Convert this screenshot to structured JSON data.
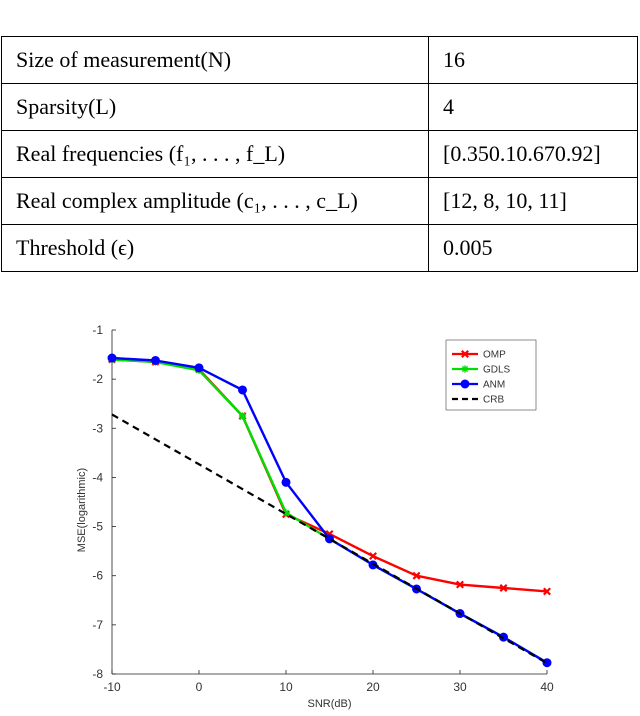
{
  "table": {
    "rows": [
      {
        "label": "Size of measurement(N)",
        "value": "16"
      },
      {
        "label": "Sparsity(L)",
        "value": "4"
      },
      {
        "label": "Real frequencies (f₁, . . . , f_L)",
        "value": "[0.350.10.670.92]"
      },
      {
        "label": "Real complex amplitude (c₁, . . . , c_L)",
        "value": "[12, 8, 10, 11]"
      },
      {
        "label": "Threshold (ϵ)",
        "value": "0.005"
      }
    ]
  },
  "chart_data": {
    "type": "line",
    "xlabel": "SNR(dB)",
    "ylabel": "MSE(logarithmic)",
    "xlim": [
      -10,
      40
    ],
    "ylim": [
      -8,
      -1
    ],
    "xticks": [
      "-10",
      "0",
      "10",
      "20",
      "30",
      "40"
    ],
    "yticks": [
      "-1",
      "-2",
      "-3",
      "-4",
      "-5",
      "-6",
      "-7",
      "-8"
    ],
    "grid": false,
    "legend_position": "top-right",
    "series": [
      {
        "name": "OMP",
        "color": "#ff0000",
        "marker": "x",
        "x": [
          -10,
          -5,
          0,
          5,
          10,
          15,
          20,
          25,
          30,
          35,
          40
        ],
        "y": [
          -1.6,
          -1.65,
          -1.8,
          -2.75,
          -4.75,
          -5.15,
          -5.6,
          -6.0,
          -6.18,
          -6.25,
          -6.32
        ]
      },
      {
        "name": "GDLS",
        "color": "#00dd00",
        "marker": "star",
        "x": [
          -10,
          -5,
          0,
          5,
          10,
          15,
          20,
          25,
          30,
          35,
          40
        ],
        "y": [
          -1.6,
          -1.65,
          -1.82,
          -2.75,
          -4.72,
          -5.25,
          -5.78,
          -6.27,
          -6.77,
          -7.25,
          -7.77
        ]
      },
      {
        "name": "ANM",
        "color": "#0000ff",
        "marker": "circle",
        "x": [
          -10,
          -5,
          0,
          5,
          10,
          15,
          20,
          25,
          30,
          35,
          40
        ],
        "y": [
          -1.57,
          -1.62,
          -1.77,
          -2.22,
          -4.1,
          -5.25,
          -5.78,
          -6.27,
          -6.77,
          -7.25,
          -7.77
        ]
      },
      {
        "name": "CRB",
        "color": "#000000",
        "marker": "none",
        "dashed": true,
        "x": [
          -10,
          40
        ],
        "y": [
          -2.72,
          -7.78
        ]
      }
    ]
  }
}
